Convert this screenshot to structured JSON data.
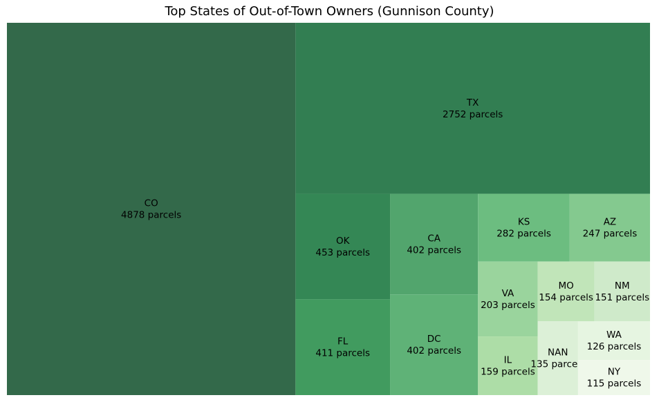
{
  "chart_data": {
    "type": "treemap",
    "title": "Top States of Out-of-Town Owners (Gunnison County)",
    "value_suffix": " parcels",
    "items": [
      {
        "label": "CO",
        "value": 4878,
        "color": "#33694a"
      },
      {
        "label": "TX",
        "value": 2752,
        "color": "#327e52"
      },
      {
        "label": "OK",
        "value": 453,
        "color": "#348755"
      },
      {
        "label": "FL",
        "value": 411,
        "color": "#419b5f"
      },
      {
        "label": "CA",
        "value": 402,
        "color": "#52a56d"
      },
      {
        "label": "DC",
        "value": 402,
        "color": "#5fb277"
      },
      {
        "label": "KS",
        "value": 282,
        "color": "#6cbd80"
      },
      {
        "label": "AZ",
        "value": 247,
        "color": "#84c98f"
      },
      {
        "label": "VA",
        "value": 203,
        "color": "#9ad49d"
      },
      {
        "label": "IL",
        "value": 159,
        "color": "#addda7"
      },
      {
        "label": "MO",
        "value": 154,
        "color": "#c1e5b9"
      },
      {
        "label": "NM",
        "value": 151,
        "color": "#cfeaca"
      },
      {
        "label": "NAN",
        "value": 135,
        "color": "#dcf0d7"
      },
      {
        "label": "WA",
        "value": 126,
        "color": "#e6f5e1"
      },
      {
        "label": "NY",
        "value": 115,
        "color": "#eff8ea"
      }
    ]
  }
}
